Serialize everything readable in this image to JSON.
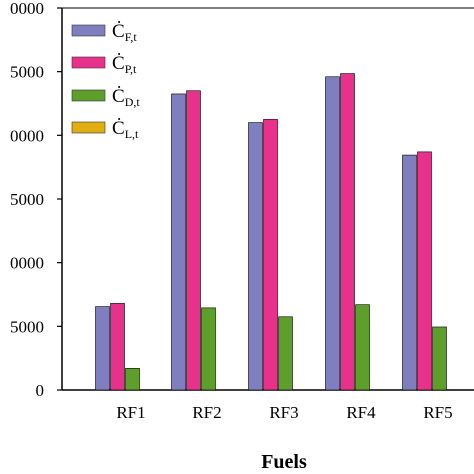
{
  "chart_data": {
    "type": "bar",
    "categories": [
      "RF1",
      "RF2",
      "RF3",
      "RF4",
      "RF5"
    ],
    "series": [
      {
        "name": "Ċ",
        "sub": "F,t",
        "color": "#7f7fbf",
        "values": [
          6550,
          23250,
          21000,
          24600,
          18450
        ]
      },
      {
        "name": "Ċ",
        "sub": "P,t",
        "color": "#e8318a",
        "values": [
          6800,
          23500,
          21250,
          24850,
          18700
        ]
      },
      {
        "name": "Ċ",
        "sub": "D,t",
        "color": "#5e9e2a",
        "values": [
          1700,
          6450,
          5750,
          6700,
          4950
        ]
      },
      {
        "name": "Ċ",
        "sub": "L,t",
        "color": "#e1ae12",
        "values": [
          0,
          0,
          0,
          0,
          0
        ]
      }
    ],
    "ylim": [
      0,
      30000
    ],
    "yticks": [
      "0",
      "5000",
      "0000",
      "5000",
      "0000",
      "5000",
      "0000"
    ],
    "xlabel": "Fuels",
    "ylabel": "",
    "title": "",
    "legend_position": "top-left",
    "grid": false
  }
}
